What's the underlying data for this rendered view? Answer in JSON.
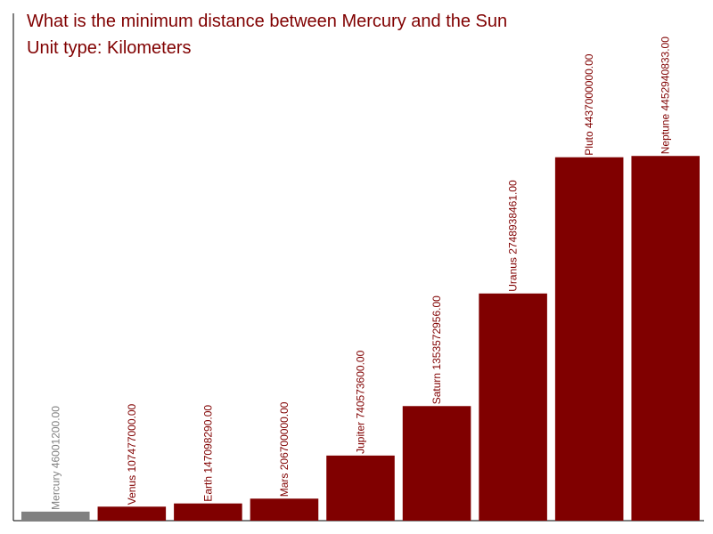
{
  "chart_data": {
    "type": "bar",
    "title": "What is the minimum distance between Mercury and the Sun",
    "subtitle": "Unit type: Kilometers",
    "categories": [
      "Mercury",
      "Venus",
      "Earth",
      "Mars",
      "Jupiter",
      "Saturn",
      "Uranus",
      "Pluto",
      "Neptune"
    ],
    "values": [
      46001200,
      107477000,
      147098290,
      206700000,
      740573600,
      1353572956,
      2748938461,
      4437000000,
      4452940833
    ],
    "value_labels": [
      "46001200.00",
      "107477000.00",
      "147098290.00",
      "206700000.00",
      "740573600.00",
      "1353572956.00",
      "2748938461.00",
      "4437000000.00",
      "4452940833.00"
    ],
    "colors": [
      "#808080",
      "#800000",
      "#800000",
      "#800000",
      "#800000",
      "#800000",
      "#800000",
      "#800000",
      "#800000"
    ],
    "title_color": "#800000",
    "ylim": [
      -66000000,
      6220000000
    ]
  }
}
